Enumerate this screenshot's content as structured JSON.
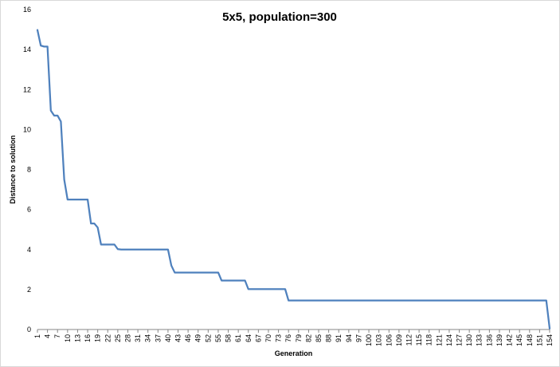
{
  "chart_data": {
    "type": "line",
    "title": "5x5, population=300",
    "xlabel": "Generation",
    "ylabel": "Distance to solution",
    "ylim": [
      0,
      16
    ],
    "yticks": [
      0,
      2,
      4,
      6,
      8,
      10,
      12,
      14,
      16
    ],
    "xlim": [
      1,
      154
    ],
    "xticks": [
      1,
      4,
      7,
      10,
      13,
      16,
      19,
      22,
      25,
      28,
      31,
      34,
      37,
      40,
      43,
      46,
      49,
      52,
      55,
      58,
      61,
      64,
      67,
      70,
      73,
      76,
      79,
      82,
      85,
      88,
      91,
      94,
      97,
      100,
      103,
      106,
      109,
      112,
      115,
      118,
      121,
      124,
      127,
      130,
      133,
      136,
      139,
      142,
      145,
      148,
      151,
      154
    ],
    "grid": false,
    "legend": "none",
    "series": [
      {
        "color": "#4f81bd",
        "points": [
          [
            1,
            14.98
          ],
          [
            2,
            14.2
          ],
          [
            3,
            14.15
          ],
          [
            4,
            14.15
          ],
          [
            5,
            10.95
          ],
          [
            6,
            10.7
          ],
          [
            7,
            10.7
          ],
          [
            8,
            10.4
          ],
          [
            9,
            7.5
          ],
          [
            10,
            6.5
          ],
          [
            11,
            6.5
          ],
          [
            12,
            6.5
          ],
          [
            16,
            6.5
          ],
          [
            17,
            5.3
          ],
          [
            18,
            5.3
          ],
          [
            19,
            5.1
          ],
          [
            20,
            4.25
          ],
          [
            21,
            4.25
          ],
          [
            24,
            4.25
          ],
          [
            25,
            4.02
          ],
          [
            26,
            4.0
          ],
          [
            40,
            4.0
          ],
          [
            41,
            3.2
          ],
          [
            42,
            2.85
          ],
          [
            43,
            2.85
          ],
          [
            55,
            2.85
          ],
          [
            56,
            2.45
          ],
          [
            63,
            2.45
          ],
          [
            64,
            2.02
          ],
          [
            65,
            2.02
          ],
          [
            75,
            2.02
          ],
          [
            76,
            1.45
          ],
          [
            77,
            1.45
          ],
          [
            153,
            1.45
          ],
          [
            154,
            0.05
          ]
        ]
      }
    ]
  }
}
